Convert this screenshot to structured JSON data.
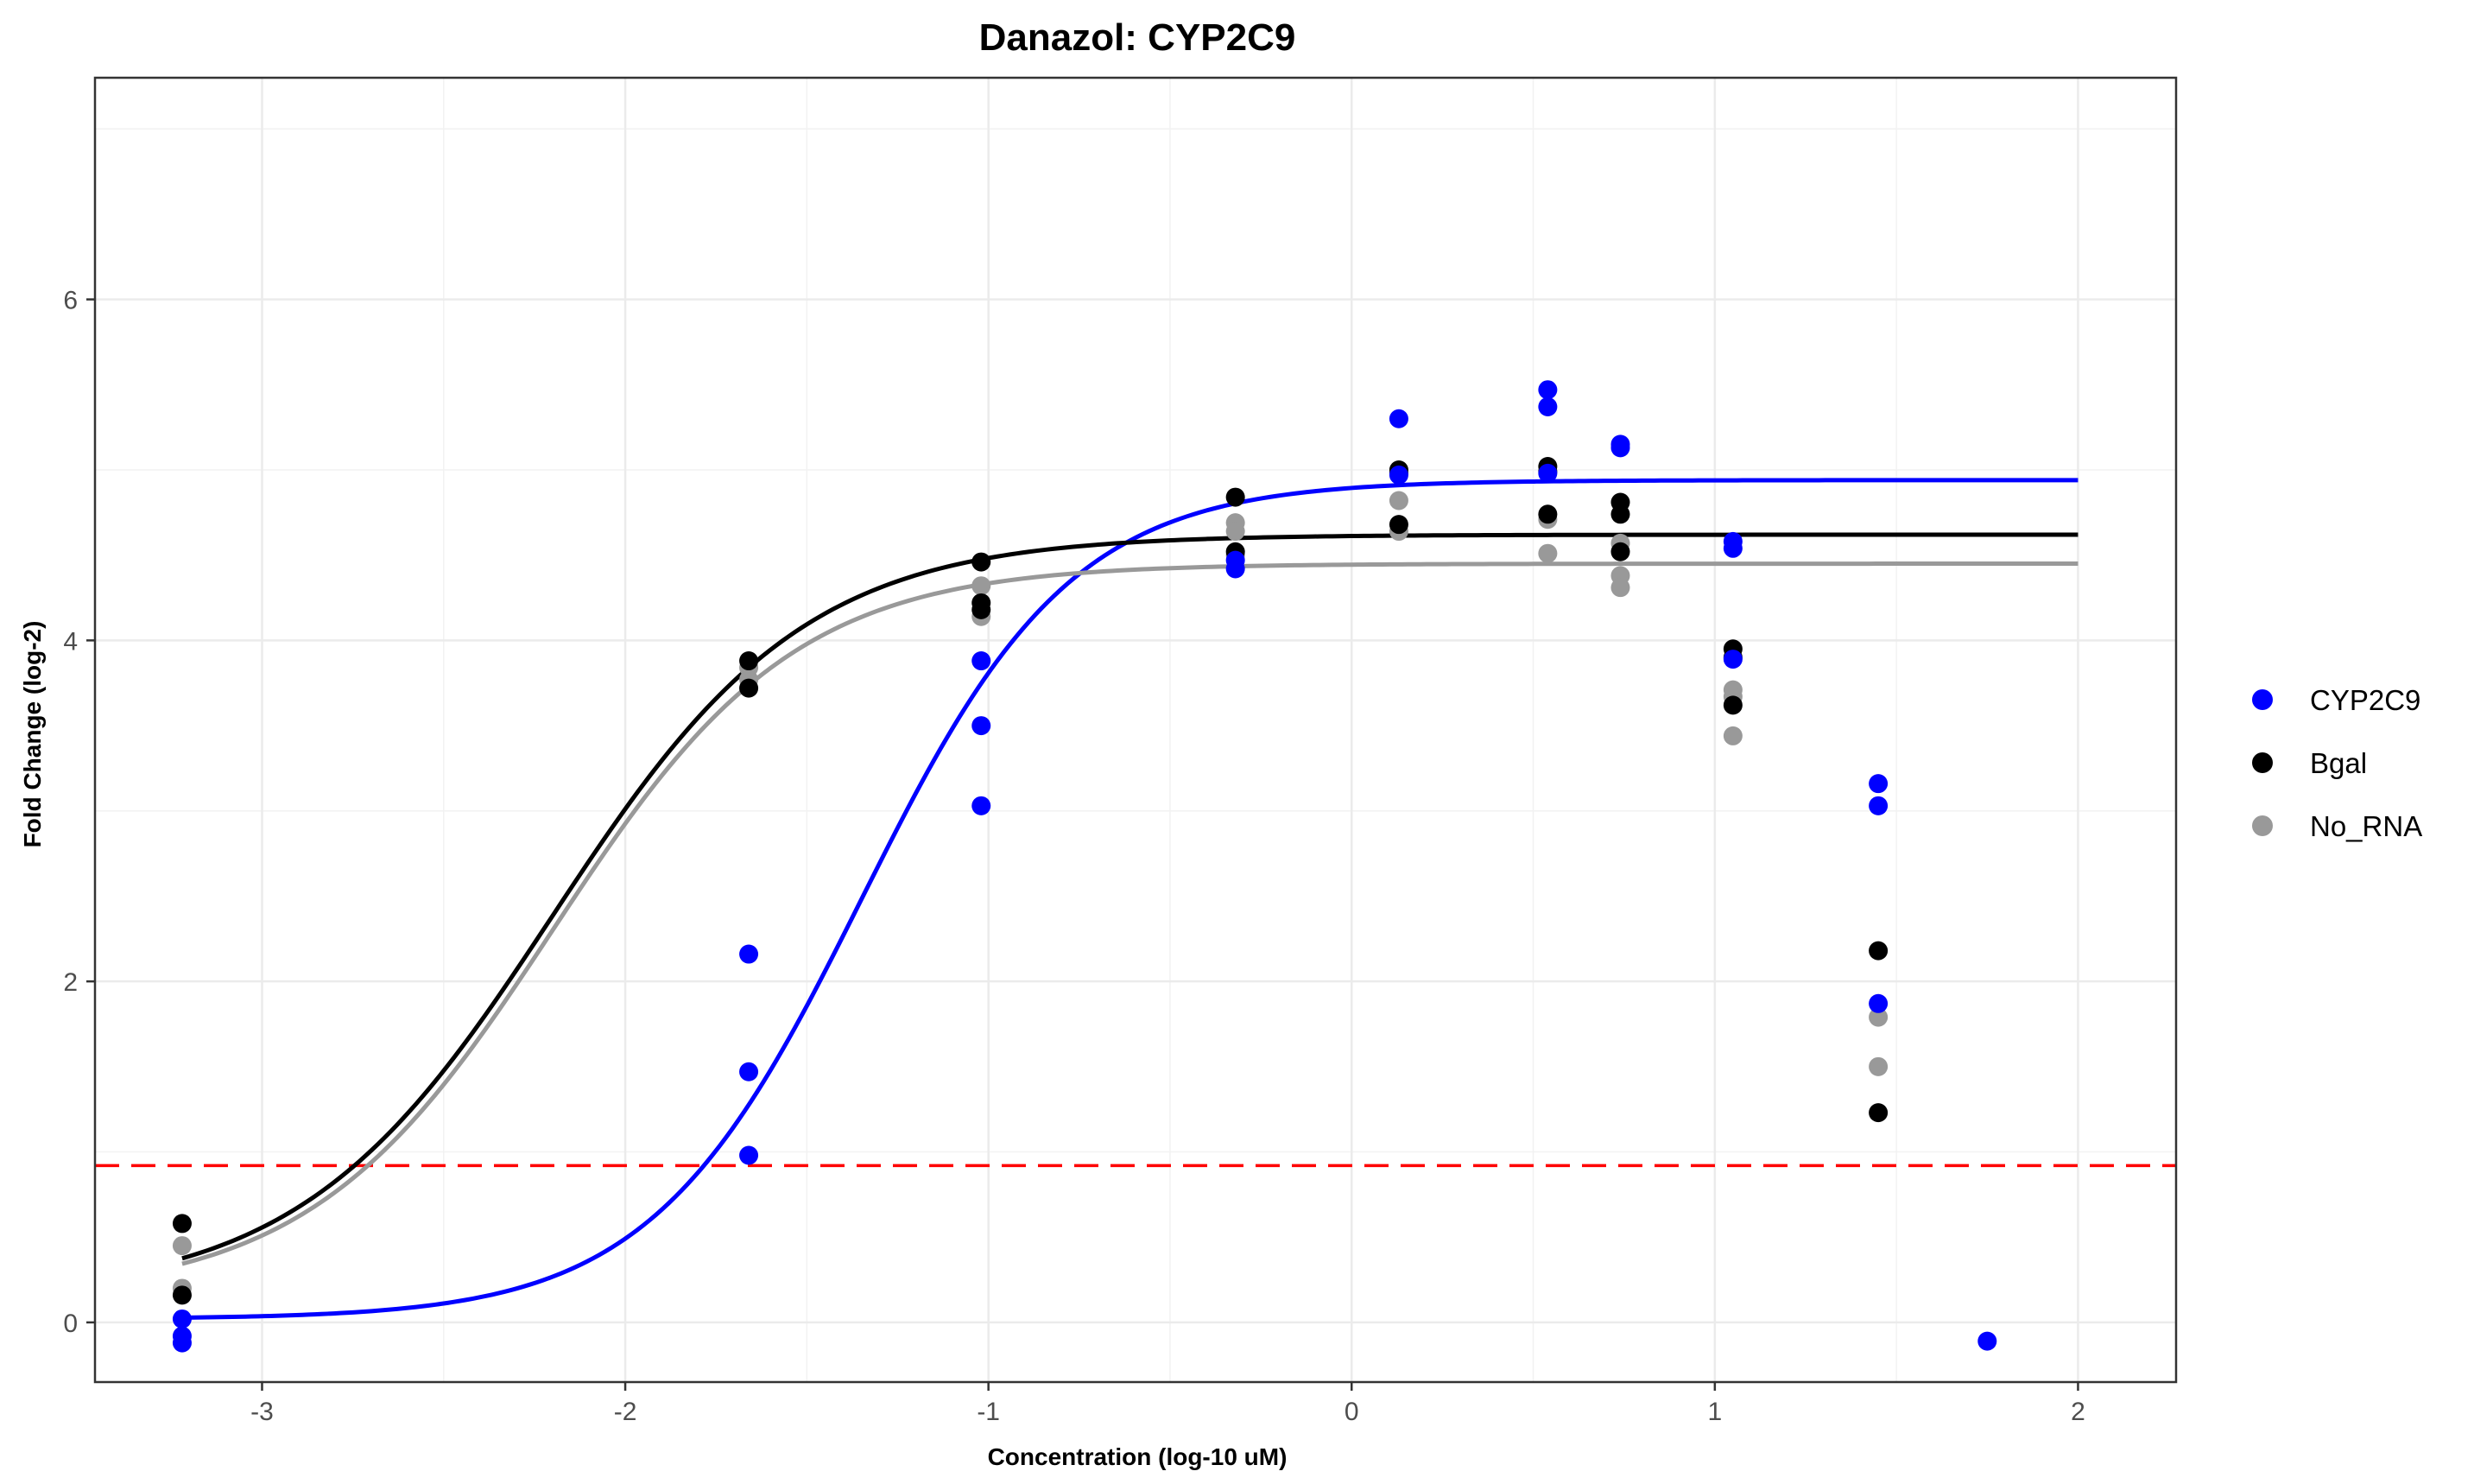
{
  "chart_data": {
    "type": "scatter",
    "title": "Danazol: CYP2C9",
    "xlabel": "Concentration (log-10 uM)",
    "ylabel": "Fold Change (log-2)",
    "xlim": [
      -3.46,
      2.27
    ],
    "ylim": [
      -0.35,
      7.3
    ],
    "x_ticks": [
      -3,
      -2,
      -1,
      0,
      1,
      2
    ],
    "y_ticks": [
      0,
      2,
      4,
      6
    ],
    "x_tick_labels": [
      "-3",
      "-2",
      "-1",
      "0",
      "1",
      "2"
    ],
    "y_tick_labels": [
      "0",
      "2",
      "4",
      "6"
    ],
    "grid": true,
    "legend_position": "right",
    "threshold_line": {
      "y": 0.92,
      "color": "#ff0000",
      "style": "dashed"
    },
    "series": [
      {
        "name": "CYP2C9",
        "color": "#0000ff",
        "points": [
          [
            -3.22,
            0.02
          ],
          [
            -3.22,
            -0.08
          ],
          [
            -3.22,
            -0.12
          ],
          [
            -1.66,
            2.16
          ],
          [
            -1.66,
            1.47
          ],
          [
            -1.66,
            0.98
          ],
          [
            -1.02,
            3.88
          ],
          [
            -1.02,
            3.5
          ],
          [
            -1.02,
            3.03
          ],
          [
            -0.32,
            4.47
          ],
          [
            -0.32,
            4.42
          ],
          [
            0.13,
            5.3
          ],
          [
            0.13,
            4.97
          ],
          [
            0.54,
            5.47
          ],
          [
            0.54,
            5.37
          ],
          [
            0.54,
            4.98
          ],
          [
            0.74,
            5.15
          ],
          [
            0.74,
            5.13
          ],
          [
            1.05,
            4.58
          ],
          [
            1.05,
            4.54
          ],
          [
            1.05,
            3.89
          ],
          [
            1.45,
            3.16
          ],
          [
            1.45,
            3.03
          ],
          [
            1.45,
            1.87
          ],
          [
            1.75,
            -0.11
          ]
        ],
        "fit": {
          "bottom": 0.02,
          "top": 4.94,
          "log_ec50": -1.35,
          "hill": 1.5
        }
      },
      {
        "name": "Bgal",
        "color": "#000000",
        "points": [
          [
            -3.22,
            0.58
          ],
          [
            -3.22,
            0.16
          ],
          [
            -1.66,
            3.88
          ],
          [
            -1.66,
            3.72
          ],
          [
            -1.02,
            4.46
          ],
          [
            -1.02,
            4.22
          ],
          [
            -1.02,
            4.18
          ],
          [
            -0.32,
            4.84
          ],
          [
            -0.32,
            4.52
          ],
          [
            0.13,
            5.0
          ],
          [
            0.13,
            4.98
          ],
          [
            0.13,
            4.68
          ],
          [
            0.54,
            5.02
          ],
          [
            0.54,
            4.99
          ],
          [
            0.54,
            4.74
          ],
          [
            0.74,
            4.81
          ],
          [
            0.74,
            4.74
          ],
          [
            0.74,
            4.52
          ],
          [
            1.05,
            3.95
          ],
          [
            1.05,
            3.9
          ],
          [
            1.05,
            3.62
          ],
          [
            1.45,
            2.18
          ],
          [
            1.45,
            1.23
          ]
        ],
        "fit": {
          "bottom": 0.15,
          "top": 4.62,
          "log_ec50": -2.2,
          "hill": 1.25
        }
      },
      {
        "name": "No_RNA",
        "color": "#999999",
        "points": [
          [
            -3.22,
            0.45
          ],
          [
            -3.22,
            0.2
          ],
          [
            -1.66,
            3.84
          ],
          [
            -1.66,
            3.77
          ],
          [
            -1.02,
            4.32
          ],
          [
            -1.02,
            4.14
          ],
          [
            -0.32,
            4.69
          ],
          [
            -0.32,
            4.64
          ],
          [
            -0.32,
            4.5
          ],
          [
            0.13,
            4.82
          ],
          [
            0.13,
            4.64
          ],
          [
            0.54,
            4.71
          ],
          [
            0.54,
            4.51
          ],
          [
            0.74,
            4.38
          ],
          [
            0.74,
            4.31
          ],
          [
            0.74,
            4.57
          ],
          [
            1.05,
            3.71
          ],
          [
            1.05,
            3.67
          ],
          [
            1.05,
            3.44
          ],
          [
            1.45,
            1.79
          ],
          [
            1.45,
            1.5
          ]
        ],
        "fit": {
          "bottom": 0.15,
          "top": 4.45,
          "log_ec50": -2.2,
          "hill": 1.3
        }
      }
    ],
    "fit_x_range": [
      -3.22,
      2.0
    ]
  }
}
